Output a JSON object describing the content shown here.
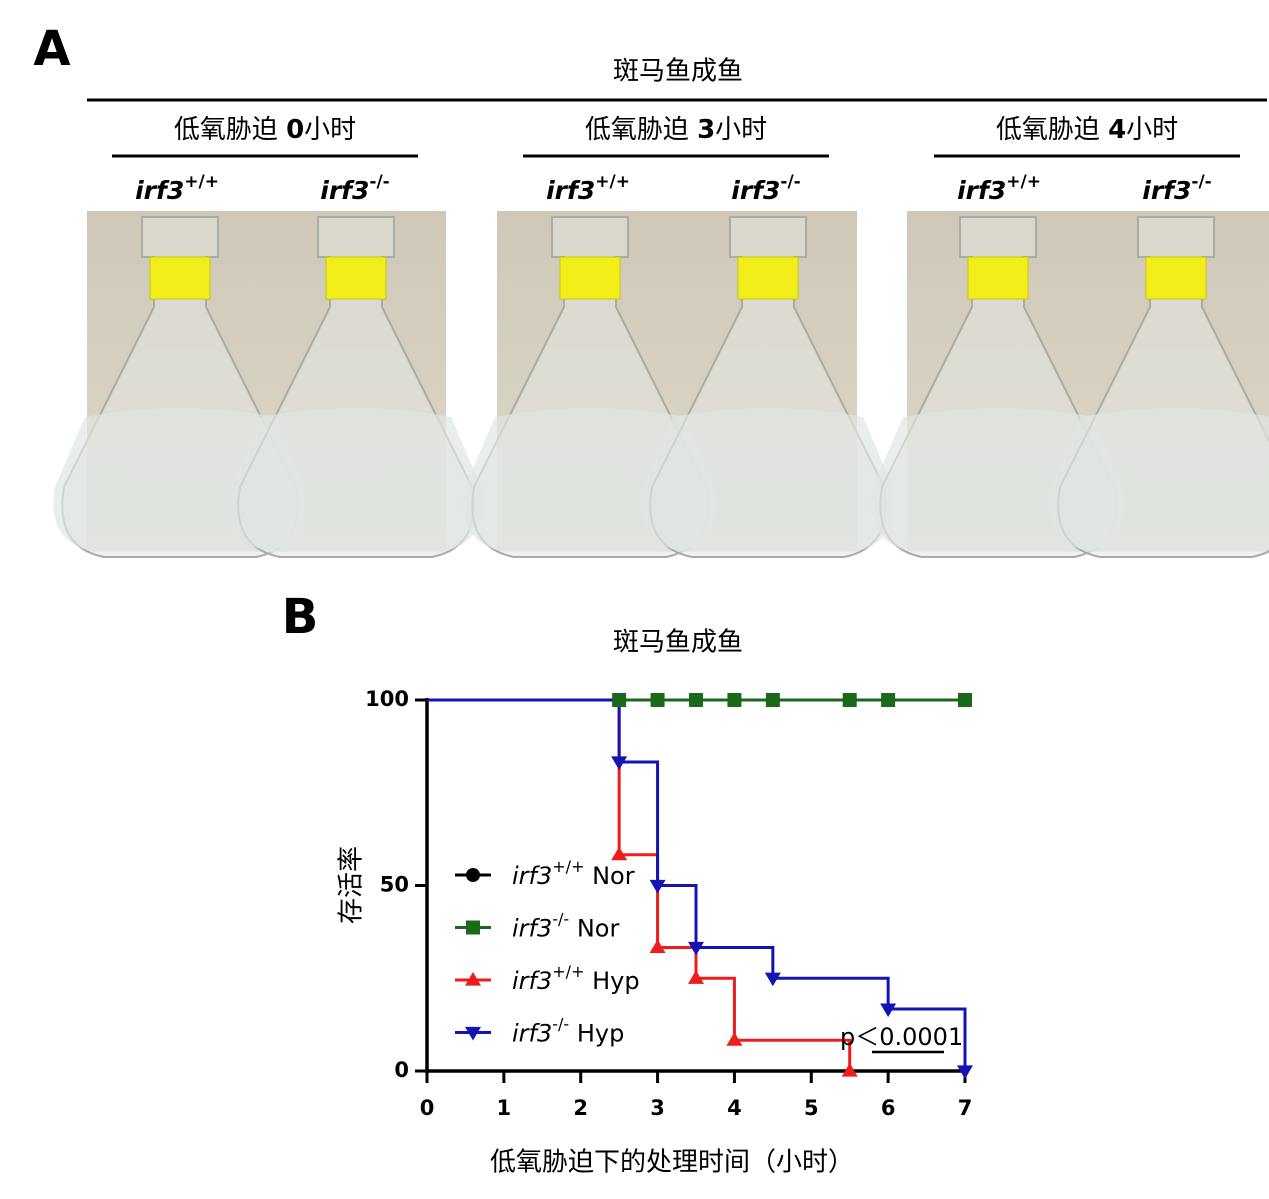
{
  "panel_a": {
    "panel_label": "A",
    "title": "斑马鱼成鱼",
    "conditions": [
      "低氧胁迫 0小时",
      "低氧胁迫 3小时",
      "低氧胁迫 4小时"
    ],
    "genotypes": [
      "irf3+/+",
      "irf3-/-"
    ]
  },
  "chart_data": {
    "type": "survival",
    "panel_label": "B",
    "title": "斑马鱼成鱼",
    "x_label": "低氧胁迫下的处理时间（小时）",
    "y_label": "存活率",
    "xlim": [
      0,
      7
    ],
    "xticks": [
      0,
      1,
      2,
      3,
      4,
      5,
      6,
      7
    ],
    "ylim": [
      0,
      100
    ],
    "yticks": [
      0,
      50,
      100
    ],
    "annotation": "p＜0.0001",
    "series": [
      {
        "name": "irf3+/+ Nor",
        "color": "#000000",
        "marker": "circle",
        "x": [
          0,
          2.5,
          3,
          3.5,
          4,
          4.5,
          5.5,
          6,
          7
        ],
        "values": [
          100,
          100,
          100,
          100,
          100,
          100,
          100,
          100,
          100
        ]
      },
      {
        "name": "irf3-/- Nor",
        "color": "#1b6a1b",
        "marker": "square",
        "x": [
          0,
          2.5,
          3,
          3.5,
          4,
          4.5,
          5.5,
          6,
          7
        ],
        "values": [
          100,
          100,
          100,
          100,
          100,
          100,
          100,
          100,
          100
        ]
      },
      {
        "name": "irf3+/+ Hyp",
        "color": "#ee1c1c",
        "marker": "triangle-up",
        "x": [
          0,
          2.5,
          3,
          3.5,
          4,
          5.5
        ],
        "values": [
          100,
          58.3,
          33.3,
          25,
          8.3,
          0
        ]
      },
      {
        "name": "irf3-/- Hyp",
        "color": "#1414b4",
        "marker": "triangle-down",
        "x": [
          0,
          2.5,
          3,
          3.5,
          4.5,
          6,
          7
        ],
        "values": [
          100,
          83.3,
          50,
          33.3,
          25,
          16.7,
          0
        ]
      }
    ]
  }
}
